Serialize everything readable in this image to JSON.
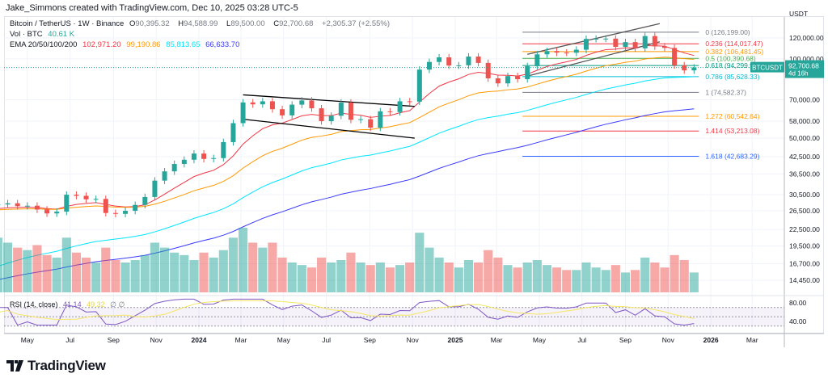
{
  "credit": "Jake_Simmons created with TradingView.com, Dec 10, 2025 03:28 UTC-5",
  "symbol": {
    "name": "Bitcoin / TetherUS · 1W · Binance",
    "o_label": "O",
    "o": "90,395.32",
    "h_label": "H",
    "h": "94,588.99",
    "l_label": "L",
    "l": "89,500.00",
    "c_label": "C",
    "c": "92,700.68",
    "change": "+2,305.37 (+2.55%)"
  },
  "volume": {
    "label": "Vol · BTC",
    "value": "40.61 K"
  },
  "ema": {
    "label": "EMA 20/50/100/200",
    "values": [
      {
        "v": "102,971.20",
        "color": "#f23645"
      },
      {
        "v": "99,190.86",
        "color": "#ff9800"
      },
      {
        "v": "85,813.65",
        "color": "#00e5ff"
      },
      {
        "v": "66,633.70",
        "color": "#3a3aff"
      }
    ]
  },
  "rsi": {
    "label": "RSI (14, close)",
    "value": "41.14",
    "ma": "49.32",
    "extra": "∅ ∅"
  },
  "axis": {
    "unit": "USDT",
    "price_ticks": [
      "120,000.00",
      "100,000.00",
      "70,000.00",
      "58,000.00",
      "50,000.00",
      "42,500.00",
      "36,500.00",
      "30,500.00",
      "26,500.00",
      "22,500.00",
      "19,500.00",
      "16,700.00",
      "14,450.00"
    ],
    "rsi_ticks": [
      "80.00",
      "40.00"
    ],
    "time_ticks": [
      "May",
      "Jul",
      "Sep",
      "Nov",
      "2024",
      "Mar",
      "May",
      "Jul",
      "Sep",
      "Nov",
      "2025",
      "Mar",
      "May",
      "Jul",
      "Sep",
      "Nov",
      "2026",
      "Mar"
    ]
  },
  "price_label": {
    "symbol": "BTCUSDT",
    "price": "92,700.68",
    "countdown": "4d 16h",
    "color": "#26a69a"
  },
  "brand": "TradingView",
  "colors": {
    "up": "#26a69a",
    "down": "#ef5350",
    "rsi": "#7e57c2",
    "rsi_ma": "#f5e663"
  },
  "chart_data": {
    "type": "candlestick",
    "interval": "1W",
    "scale": "log",
    "ylim": [
      12500,
      135000
    ],
    "start": "2023-03-06",
    "step_days": 14,
    "closes": [
      27900,
      28000,
      28300,
      27600,
      27700,
      26800,
      25900,
      26300,
      30500,
      30200,
      29300,
      29400,
      26000,
      25800,
      26500,
      27900,
      29900,
      34500,
      37400,
      39900,
      41400,
      43700,
      41700,
      42000,
      48300,
      57000,
      68300,
      67200,
      69000,
      64400,
      61000,
      67000,
      69500,
      64900,
      58000,
      60800,
      68200,
      58700,
      59000,
      54800,
      63200,
      62800,
      69000,
      68800,
      91000,
      97300,
      101300,
      94300,
      94500,
      102000,
      96500,
      84300,
      80700,
      86000,
      83700,
      93800,
      104000,
      107000,
      105600,
      105500,
      108300,
      119000,
      119200,
      119300,
      111000,
      115700,
      109600,
      122000,
      111500,
      110000,
      94500,
      90400,
      92700
    ],
    "last_open": 90395.32,
    "volumes": [
      26,
      22,
      20,
      18,
      17,
      19,
      15,
      14,
      22,
      16,
      14,
      12,
      18,
      13,
      12,
      13,
      15,
      20,
      18,
      16,
      15,
      13,
      16,
      14,
      17,
      22,
      26,
      20,
      18,
      20,
      14,
      12,
      11,
      10,
      14,
      12,
      13,
      16,
      12,
      11,
      12,
      10,
      11,
      12,
      24,
      18,
      14,
      12,
      10,
      13,
      12,
      17,
      14,
      11,
      10,
      12,
      13,
      11,
      10,
      9,
      9,
      12,
      10,
      9,
      11,
      8,
      9,
      14,
      12,
      10,
      15,
      13,
      8
    ],
    "fib_levels": [
      {
        "level": "0",
        "price": 126199.0,
        "label": "0 (126,199.00)",
        "color": "#787b86"
      },
      {
        "level": "0.236",
        "price": 114017.47,
        "label": "0.236 (114,017.47)",
        "color": "#f23645"
      },
      {
        "level": "0.382",
        "price": 106481.45,
        "label": "0.382 (106,481.45)",
        "color": "#ff9800"
      },
      {
        "level": "0.5",
        "price": 100390.68,
        "label": "0.5 (100,390.68)",
        "color": "#4caf50"
      },
      {
        "level": "0.618",
        "price": 94299.92,
        "label": "0.618 (94,299.92)",
        "color": "#089981"
      },
      {
        "level": "0.786",
        "price": 85628.33,
        "label": "0.786 (85,628.33)",
        "color": "#00bcd4"
      },
      {
        "level": "1",
        "price": 74582.37,
        "label": "1 (74,582.37)",
        "color": "#787b86"
      },
      {
        "level": "1.272",
        "price": 60542.64,
        "label": "1.272 (60,542.64)",
        "color": "#ff9800"
      },
      {
        "level": "1.414",
        "price": 53213.08,
        "label": "1.414 (53,213.08)",
        "color": "#f23645"
      },
      {
        "level": "1.618",
        "price": 42683.29,
        "label": "1.618 (42,683.29)",
        "color": "#2962ff"
      }
    ],
    "fib_range": [
      "2025-04-07",
      "2025-12-08"
    ],
    "trendlines": [
      {
        "from": [
          "2024-03-04",
          73000
        ],
        "to": [
          "2024-11-04",
          66000
        ],
        "color": "#000"
      },
      {
        "from": [
          "2024-03-04",
          59000
        ],
        "to": [
          "2024-11-04",
          50000
        ],
        "color": "#000"
      },
      {
        "from": [
          "2025-04-14",
          104000
        ],
        "to": [
          "2025-10-20",
          136000
        ],
        "color": "#555"
      },
      {
        "from": [
          "2025-04-14",
          86000
        ],
        "to": [
          "2025-10-20",
          116000
        ],
        "color": "#555"
      }
    ]
  }
}
